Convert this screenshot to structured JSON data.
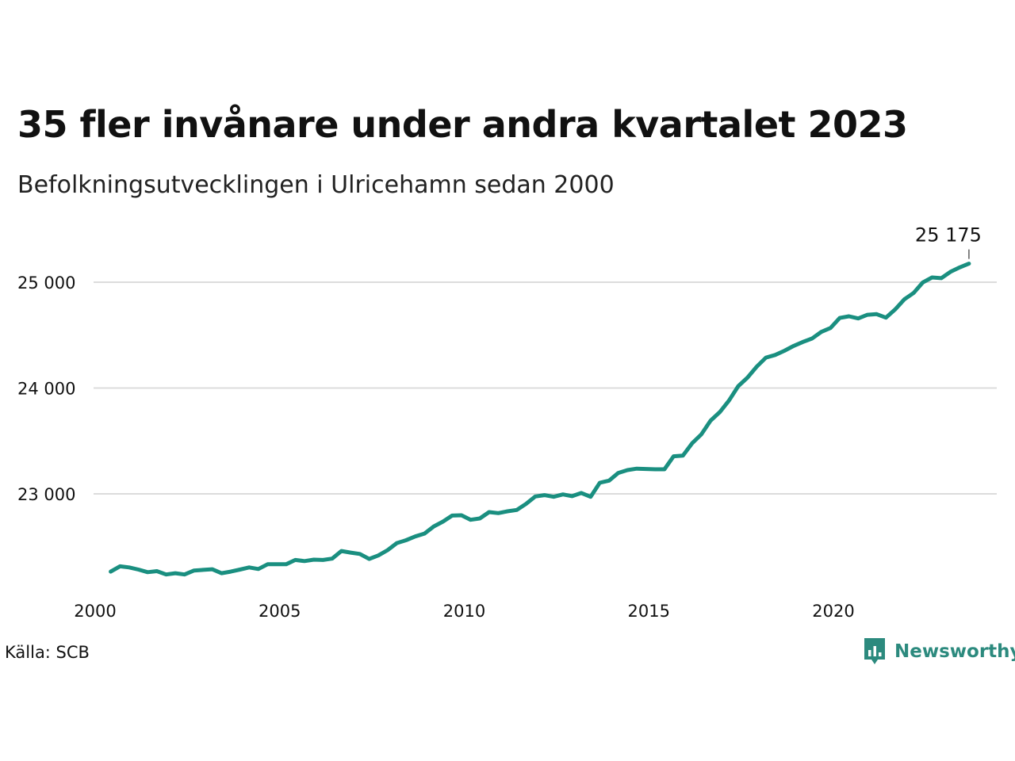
{
  "chart_data": {
    "type": "line",
    "title": "35 fler invånare under andra kvartalet 2023",
    "subtitle": "Befolkningsutvecklingen i Ulricehamn sedan 2000",
    "xlabel": "",
    "ylabel": "",
    "xlim": [
      2000,
      2024.5
    ],
    "ylim": [
      22200,
      25300
    ],
    "grid": "horizontal",
    "line_color": "#1a8f80",
    "x_ticks": [
      {
        "value": 2000,
        "label": "2000"
      },
      {
        "value": 2005,
        "label": "2005"
      },
      {
        "value": 2010,
        "label": "2010"
      },
      {
        "value": 2015,
        "label": "2015"
      },
      {
        "value": 2020,
        "label": "2020"
      }
    ],
    "y_ticks": [
      {
        "value": 23000,
        "label": "23 000"
      },
      {
        "value": 24000,
        "label": "24 000"
      },
      {
        "value": 25000,
        "label": "25 000"
      }
    ],
    "end_label": "25 175",
    "x": [
      2000.25,
      2000.5,
      2000.75,
      2001.0,
      2001.25,
      2001.5,
      2001.75,
      2002.0,
      2002.25,
      2002.5,
      2002.75,
      2003.0,
      2003.25,
      2003.5,
      2003.75,
      2004.0,
      2004.25,
      2004.5,
      2004.75,
      2005.0,
      2005.25,
      2005.5,
      2005.75,
      2006.0,
      2006.25,
      2006.5,
      2006.75,
      2007.0,
      2007.25,
      2007.5,
      2007.75,
      2008.0,
      2008.25,
      2008.5,
      2008.75,
      2009.0,
      2009.25,
      2009.5,
      2009.75,
      2010.0,
      2010.25,
      2010.5,
      2010.75,
      2011.0,
      2011.25,
      2011.5,
      2011.75,
      2012.0,
      2012.25,
      2012.5,
      2012.75,
      2013.0,
      2013.25,
      2013.5,
      2013.75,
      2014.0,
      2014.25,
      2014.5,
      2014.75,
      2015.0,
      2015.25,
      2015.5,
      2015.75,
      2016.0,
      2016.25,
      2016.5,
      2016.75,
      2017.0,
      2017.25,
      2017.5,
      2017.75,
      2018.0,
      2018.25,
      2018.5,
      2018.75,
      2019.0,
      2019.25,
      2019.5,
      2019.75,
      2020.0,
      2020.25,
      2020.5,
      2020.75,
      2021.0,
      2021.25,
      2021.5,
      2021.75,
      2022.0,
      2022.25,
      2022.5,
      2022.75,
      2023.0,
      2023.25,
      2023.5
    ],
    "values": [
      22265,
      22315,
      22305,
      22285,
      22260,
      22270,
      22238,
      22250,
      22238,
      22275,
      22282,
      22288,
      22250,
      22265,
      22285,
      22305,
      22290,
      22335,
      22335,
      22335,
      22375,
      22365,
      22378,
      22375,
      22388,
      22460,
      22445,
      22432,
      22385,
      22418,
      22468,
      22535,
      22562,
      22598,
      22625,
      22692,
      22738,
      22795,
      22798,
      22755,
      22768,
      22828,
      22818,
      22835,
      22848,
      22905,
      22975,
      22988,
      22972,
      22995,
      22978,
      23008,
      22972,
      23105,
      23125,
      23198,
      23225,
      23238,
      23235,
      23232,
      23232,
      23355,
      23362,
      23478,
      23562,
      23692,
      23772,
      23882,
      24018,
      24098,
      24202,
      24288,
      24312,
      24352,
      24398,
      24435,
      24468,
      24530,
      24568,
      24662,
      24678,
      24658,
      24692,
      24698,
      24665,
      24742,
      24838,
      24898,
      24998,
      25045,
      25038,
      25098,
      25140,
      25175
    ]
  },
  "source": "Källa: SCB",
  "brand": {
    "name": "Newsworthy",
    "color": "#2c8a7e"
  }
}
